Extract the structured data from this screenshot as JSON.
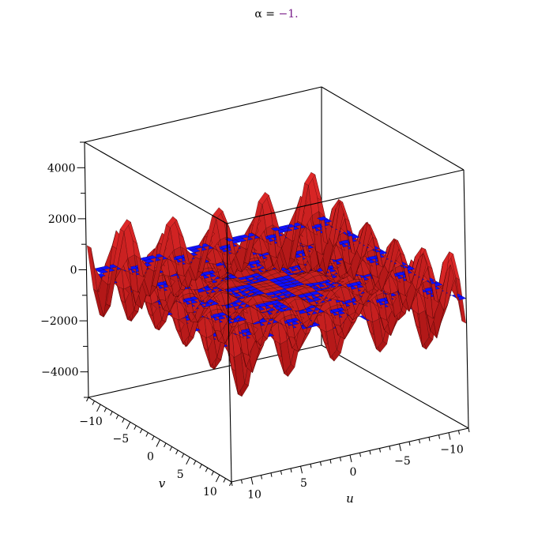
{
  "title": {
    "prefix": "α = ",
    "value": "−1."
  },
  "chart_data": {
    "type": "surface3d",
    "title": "α = −1.",
    "xlabel": "u",
    "ylabel": "v",
    "zlabel": "",
    "x_range": [
      -12,
      12
    ],
    "y_range": [
      -12,
      12
    ],
    "z_range": [
      -5000,
      5000
    ],
    "z_ticks": [
      4000,
      2000,
      0,
      -2000,
      -4000
    ],
    "z_tick_labels": [
      "4000",
      "2000",
      "0",
      "−2000",
      "−4000"
    ],
    "u_ticks": [
      10,
      5,
      0,
      -5,
      -10
    ],
    "u_tick_labels": [
      "10",
      "5",
      "0",
      "−5",
      "−10"
    ],
    "v_ticks": [
      -10,
      -5,
      0,
      5,
      10
    ],
    "v_tick_labels": [
      "−10",
      "−5",
      "0",
      "5",
      "10"
    ],
    "grid": false,
    "surfaces": [
      {
        "role": "oscillating surface",
        "color": "#e01010",
        "max_abs_z": 4300
      },
      {
        "role": "flat plane",
        "color": "#1010ff",
        "z": 0
      }
    ]
  },
  "colors": {
    "surface_red": "#e01010",
    "surface_red_dark": "#7a0000",
    "plane_blue": "#1010ff"
  }
}
